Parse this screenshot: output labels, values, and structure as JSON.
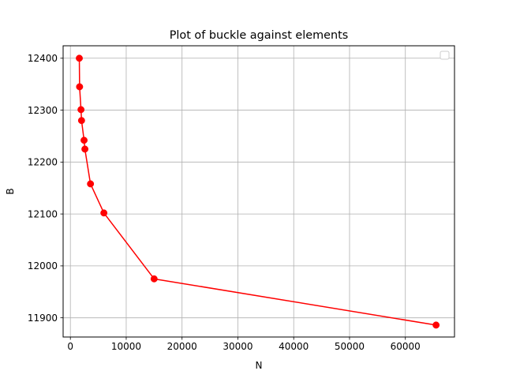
{
  "chart_data": {
    "type": "line",
    "title": "Plot of buckle against elements",
    "xlabel": "N",
    "ylabel": "B",
    "xlim": [
      -1300,
      68800
    ],
    "ylim": [
      11863,
      12424
    ],
    "xticks": [
      0,
      10000,
      20000,
      30000,
      40000,
      50000,
      60000
    ],
    "yticks": [
      11900,
      12000,
      12100,
      12200,
      12300,
      12400
    ],
    "grid": true,
    "legend": "top-right",
    "legend_entries": [],
    "series": [
      {
        "color": "#ff0000",
        "marker": "circle",
        "x": [
          1600,
          1650,
          1900,
          2000,
          2450,
          2600,
          3600,
          6000,
          15000,
          65500
        ],
        "y": [
          12400,
          12345,
          12301,
          12280,
          12242,
          12225,
          12158,
          12102,
          11975,
          11886
        ]
      }
    ]
  }
}
